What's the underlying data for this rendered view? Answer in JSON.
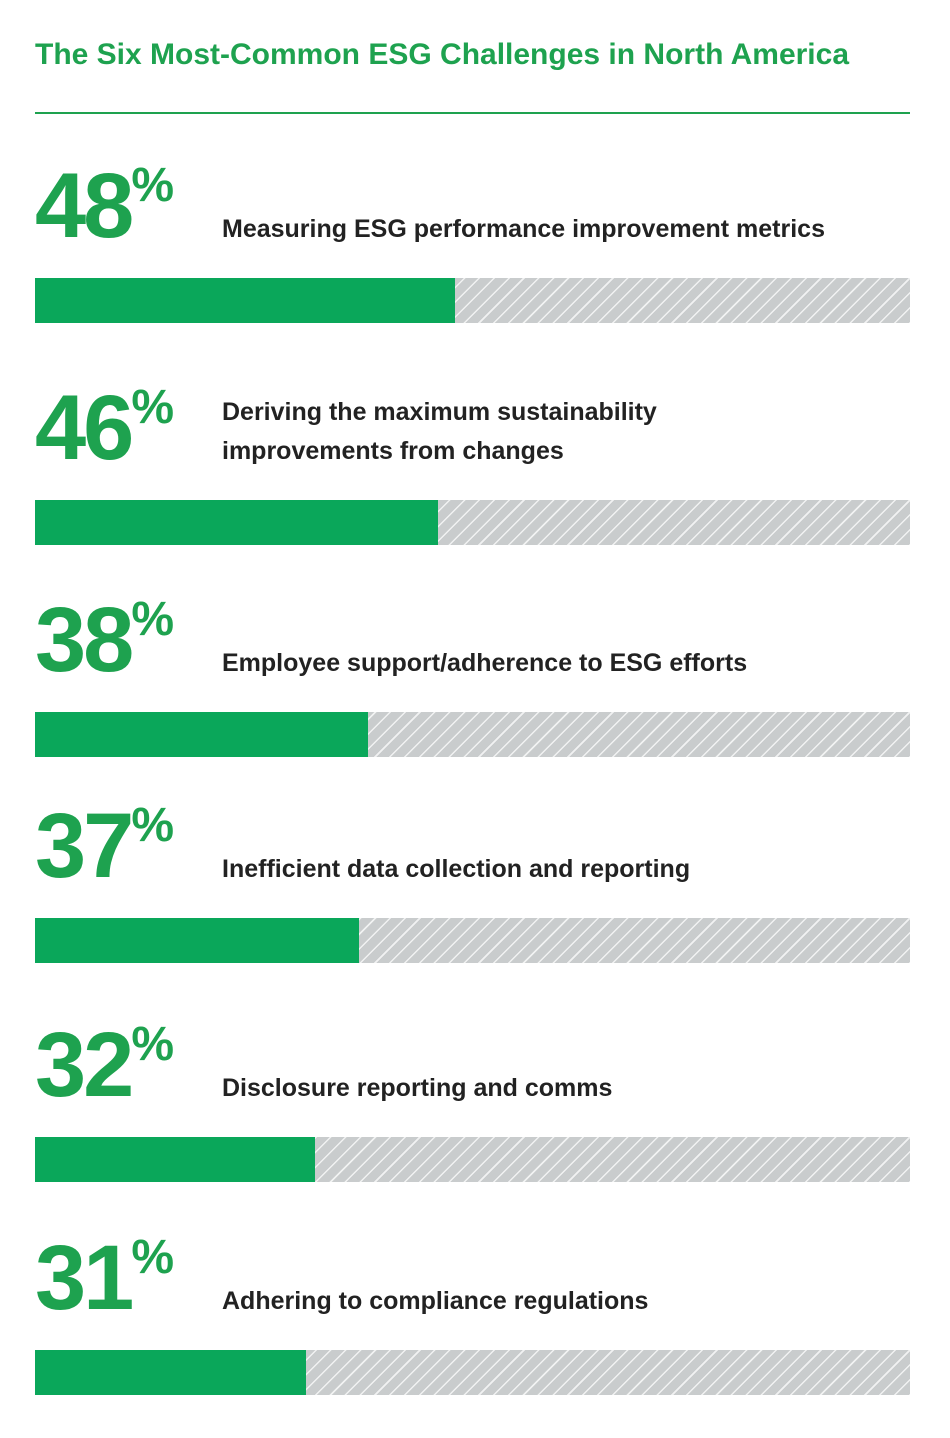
{
  "chart_data": {
    "type": "bar",
    "title": "The Six Most-Common ESG Challenges in North America",
    "categories": [
      "Measuring ESG performance improvement metrics",
      "Deriving the maximum sustainability\nimprovements from changes",
      "Employee support/adherence to ESG efforts",
      "Inefficient data collection and reporting",
      "Disclosure reporting and comms",
      "Adhering to compliance regulations"
    ],
    "values": [
      48,
      46,
      38,
      37,
      32,
      31
    ],
    "value_labels": [
      "48%",
      "46%",
      "38%",
      "37%",
      "32%",
      "31%"
    ],
    "xlim": [
      0,
      100
    ],
    "color": "#0aa75a",
    "track_color": "#c9cccd",
    "text_color": "#222222",
    "title_color": "#1ea24f"
  }
}
